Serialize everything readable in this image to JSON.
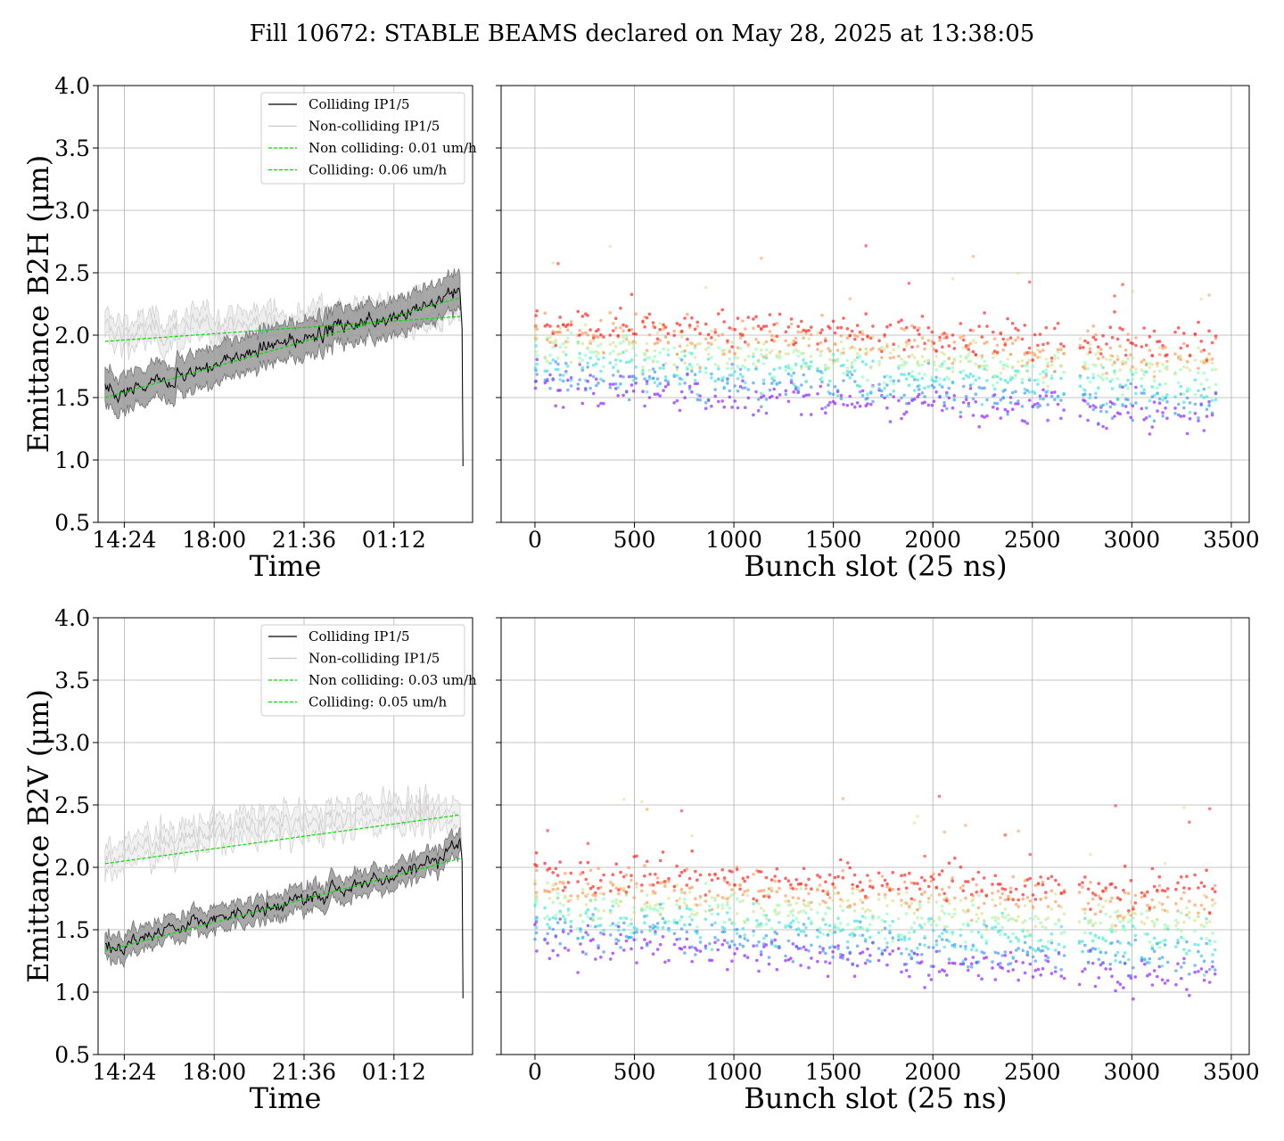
{
  "figure": {
    "suptitle": "Fill 10672: STABLE BEAMS declared on May 28, 2025 at 13:38:05"
  },
  "chart_data": [
    {
      "id": "b2h-time",
      "type": "line",
      "xlabel": "Time",
      "ylabel": "Emittance B2H (μm)",
      "ylim": [
        0.5,
        4.0
      ],
      "yticks": [
        "0.5",
        "1.0",
        "1.5",
        "2.0",
        "2.5",
        "3.0",
        "3.5",
        "4.0"
      ],
      "xticks": [
        {
          "hour": 14.4,
          "label": "14:24"
        },
        {
          "hour": 18.0,
          "label": "18:00"
        },
        {
          "hour": 21.6,
          "label": "21:36"
        },
        {
          "hour": 25.2,
          "label": "01:12"
        }
      ],
      "xlim_hours": [
        13.35,
        28.35
      ],
      "grid": true,
      "legend_position": "upper-right",
      "series": [
        {
          "name": "Colliding IP1/5",
          "color": "#000000",
          "band_color": "#999999",
          "band_width": 0.26,
          "x_hours": [
            13.63,
            14.0,
            15.0,
            16.0,
            17.0,
            18.0,
            19.0,
            20.0,
            21.0,
            22.0,
            23.0,
            24.0,
            25.0,
            26.0,
            27.0,
            27.85
          ],
          "values": [
            1.58,
            1.5,
            1.57,
            1.64,
            1.7,
            1.76,
            1.83,
            1.89,
            1.95,
            2.01,
            2.07,
            2.11,
            2.15,
            2.2,
            2.28,
            2.38
          ]
        },
        {
          "name": "Non-colliding IP1/5",
          "color": "#cfcfcf",
          "band_color": "#e2e2e2",
          "band_width": 0.18,
          "x_hours": [
            13.63,
            14.5,
            16.0,
            17.5,
            19.0,
            20.5,
            22.0,
            23.5,
            25.0,
            26.5,
            27.85
          ],
          "values": [
            2.04,
            2.02,
            2.03,
            2.06,
            2.08,
            2.1,
            2.12,
            2.14,
            2.15,
            2.17,
            2.2
          ]
        },
        {
          "name": "Non colliding: 0.01 um/h",
          "color": "#00dd00",
          "style": "dashed",
          "x_hours": [
            13.63,
            27.85
          ],
          "values": [
            1.95,
            2.15
          ]
        },
        {
          "name": "Colliding: 0.06 um/h",
          "color": "#00dd00",
          "style": "dashed",
          "x_hours": [
            13.63,
            27.85
          ],
          "values": [
            1.5,
            2.3
          ]
        }
      ]
    },
    {
      "id": "b2h-bunch",
      "type": "scatter",
      "xlabel": "Bunch slot (25 ns)",
      "ylim": [
        0.5,
        4.0
      ],
      "xlim": [
        -170,
        3590
      ],
      "xticks": [
        "0",
        "500",
        "1000",
        "1500",
        "2000",
        "2500",
        "3000",
        "3500"
      ],
      "grid": true,
      "trains": [
        [
          0,
          10
        ],
        [
          50,
          180
        ],
        [
          215,
          345
        ],
        [
          380,
          510
        ],
        [
          540,
          670
        ],
        [
          700,
          830
        ],
        [
          860,
          920
        ],
        [
          940,
          1070
        ],
        [
          1100,
          1230
        ],
        [
          1260,
          1390
        ],
        [
          1420,
          1550
        ],
        [
          1570,
          1700
        ],
        [
          1730,
          1800
        ],
        [
          1830,
          1960
        ],
        [
          1980,
          2110
        ],
        [
          2140,
          2270
        ],
        [
          2300,
          2430
        ],
        [
          2450,
          2580
        ],
        [
          2600,
          2660
        ],
        [
          2740,
          2870
        ],
        [
          2890,
          3020
        ],
        [
          3050,
          3180
        ],
        [
          3220,
          3290
        ],
        [
          3320,
          3420
        ]
      ],
      "colormap": [
        "#7f00ff",
        "#2a8bf2",
        "#2adddd",
        "#80ffb4",
        "#d4dd80",
        "#ff8b45",
        "#ff0000"
      ],
      "y_start_bottom": 1.6,
      "y_end_bottom": 1.35,
      "y_start_top": 2.12,
      "y_end_top": 1.93
    },
    {
      "id": "b2v-time",
      "type": "line",
      "xlabel": "Time",
      "ylabel": "Emittance B2V (μm)",
      "ylim": [
        0.5,
        4.0
      ],
      "yticks": [
        "0.5",
        "1.0",
        "1.5",
        "2.0",
        "2.5",
        "3.0",
        "3.5",
        "4.0"
      ],
      "xticks": [
        {
          "hour": 14.4,
          "label": "14:24"
        },
        {
          "hour": 18.0,
          "label": "18:00"
        },
        {
          "hour": 21.6,
          "label": "21:36"
        },
        {
          "hour": 25.2,
          "label": "01:12"
        }
      ],
      "xlim_hours": [
        13.35,
        28.35
      ],
      "grid": true,
      "legend_position": "upper-right",
      "series": [
        {
          "name": "Colliding IP1/5",
          "color": "#000000",
          "band_color": "#999999",
          "band_width": 0.16,
          "x_hours": [
            13.63,
            14.0,
            15.0,
            16.0,
            17.0,
            18.0,
            19.0,
            20.0,
            21.0,
            22.0,
            23.0,
            24.0,
            25.0,
            26.0,
            27.0,
            27.85
          ],
          "values": [
            1.38,
            1.36,
            1.43,
            1.5,
            1.55,
            1.59,
            1.63,
            1.67,
            1.72,
            1.77,
            1.82,
            1.88,
            1.93,
            2.0,
            2.07,
            2.22
          ]
        },
        {
          "name": "Non-colliding IP1/5",
          "color": "#cfcfcf",
          "band_color": "#e8e8e8",
          "band_width": 0.18,
          "x_hours": [
            13.63,
            14.5,
            16.0,
            17.5,
            19.0,
            20.5,
            22.0,
            23.5,
            25.0,
            26.5,
            27.85
          ],
          "values": [
            2.05,
            2.12,
            2.2,
            2.27,
            2.3,
            2.35,
            2.37,
            2.4,
            2.45,
            2.43,
            2.4
          ]
        },
        {
          "name": "Non colliding: 0.03 um/h",
          "color": "#00dd00",
          "style": "dashed",
          "x_hours": [
            13.63,
            27.85
          ],
          "values": [
            2.03,
            2.42
          ]
        },
        {
          "name": "Colliding: 0.05 um/h",
          "color": "#00dd00",
          "style": "dashed",
          "x_hours": [
            13.63,
            27.85
          ],
          "values": [
            1.33,
            2.07
          ]
        }
      ]
    },
    {
      "id": "b2v-bunch",
      "type": "scatter",
      "xlabel": "Bunch slot (25 ns)",
      "ylim": [
        0.5,
        4.0
      ],
      "xlim": [
        -170,
        3590
      ],
      "xticks": [
        "0",
        "500",
        "1000",
        "1500",
        "2000",
        "2500",
        "3000",
        "3500"
      ],
      "grid": true,
      "trains": [
        [
          0,
          10
        ],
        [
          50,
          180
        ],
        [
          215,
          345
        ],
        [
          380,
          510
        ],
        [
          540,
          670
        ],
        [
          700,
          830
        ],
        [
          860,
          920
        ],
        [
          940,
          1070
        ],
        [
          1100,
          1230
        ],
        [
          1260,
          1390
        ],
        [
          1420,
          1550
        ],
        [
          1570,
          1700
        ],
        [
          1730,
          1800
        ],
        [
          1830,
          1960
        ],
        [
          1980,
          2110
        ],
        [
          2140,
          2270
        ],
        [
          2300,
          2430
        ],
        [
          2450,
          2580
        ],
        [
          2600,
          2660
        ],
        [
          2740,
          2870
        ],
        [
          2890,
          3020
        ],
        [
          3050,
          3180
        ],
        [
          3220,
          3290
        ],
        [
          3320,
          3420
        ]
      ],
      "colormap": [
        "#7f00ff",
        "#2a8bf2",
        "#2adddd",
        "#80ffb4",
        "#d4dd80",
        "#ff8b45",
        "#ff0000"
      ],
      "y_start_bottom": 1.42,
      "y_end_bottom": 1.12,
      "y_start_top": 1.95,
      "y_end_top": 1.82
    }
  ]
}
